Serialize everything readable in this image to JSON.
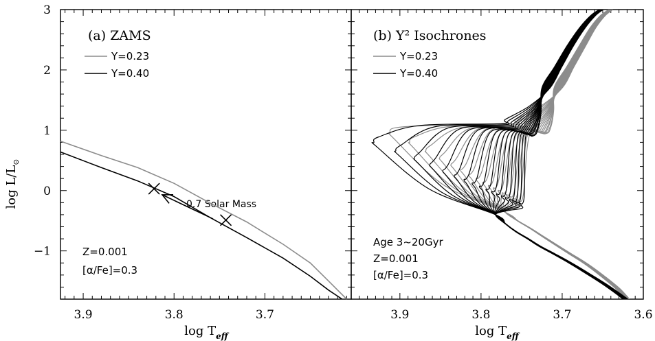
{
  "colors": {
    "gray": "#8c8c8c",
    "black": "#000000",
    "background": "#ffffff"
  },
  "chart_data": [
    {
      "type": "line",
      "title": "(a) ZAMS",
      "xlabel": "log T",
      "xlabel_sub": "eff",
      "ylabel": "log L/L",
      "xlim": [
        3.925,
        3.605
      ],
      "ylim": [
        -1.8,
        3.0
      ],
      "x_ticks": [
        3.9,
        3.8,
        3.7
      ],
      "x_tick_labels": [
        "3.9",
        "3.8",
        "3.7"
      ],
      "y_ticks": [
        -1,
        0,
        1,
        2,
        3
      ],
      "y_tick_labels": [
        "−1",
        "0",
        "1",
        "2",
        "3"
      ],
      "legend": [
        "Y=0.23",
        "Y=0.40"
      ],
      "notes": [
        "Z=0.001",
        "[α/Fe]=0.3"
      ],
      "arrow_label": "0.7 Solar Mass",
      "markers": [
        {
          "x": 3.822,
          "y": 0.03
        },
        {
          "x": 3.743,
          "y": -0.49
        }
      ],
      "arrow": {
        "from": {
          "x": 3.757,
          "y": -0.47
        },
        "to": {
          "x": 3.813,
          "y": -0.07
        }
      },
      "series": [
        {
          "name": "Y=0.23",
          "color": "gray",
          "x": [
            3.925,
            3.88,
            3.84,
            3.8,
            3.76,
            3.72,
            3.68,
            3.65,
            3.63,
            3.61
          ],
          "y": [
            0.82,
            0.58,
            0.38,
            0.12,
            -0.21,
            -0.52,
            -0.89,
            -1.2,
            -1.5,
            -1.8
          ]
        },
        {
          "name": "Y=0.40",
          "color": "black",
          "x": [
            3.925,
            3.88,
            3.84,
            3.8,
            3.76,
            3.72,
            3.68,
            3.65,
            3.63,
            3.615
          ],
          "y": [
            0.64,
            0.38,
            0.16,
            -0.1,
            -0.45,
            -0.78,
            -1.12,
            -1.42,
            -1.65,
            -1.8
          ]
        }
      ]
    },
    {
      "type": "line",
      "title": "(b) Y² Isochrones",
      "xlabel": "log T",
      "xlabel_sub": "eff",
      "xlim": [
        3.96,
        3.6
      ],
      "ylim": [
        -1.8,
        3.0
      ],
      "x_ticks": [
        3.9,
        3.8,
        3.7,
        3.6
      ],
      "x_tick_labels": [
        "3.9",
        "3.8",
        "3.7",
        "3.6"
      ],
      "legend": [
        "Y=0.23",
        "Y=0.40"
      ],
      "notes": [
        "Age 3~20Gyr",
        "Z=0.001",
        "[α/Fe]=0.3"
      ],
      "ages_gyr": [
        3,
        4,
        5,
        6,
        7,
        8,
        9,
        10,
        11,
        12,
        13,
        14,
        15,
        16,
        17,
        18,
        19,
        20
      ],
      "series": [
        {
          "name": "Y=0.23",
          "color": "gray",
          "turnoff_logTeff": [
            3.912,
            3.888,
            3.868,
            3.851,
            3.837,
            3.825,
            3.815,
            3.806,
            3.798,
            3.791,
            3.785,
            3.779,
            3.774,
            3.769,
            3.765,
            3.761,
            3.757,
            3.754
          ],
          "turnoff_logL": [
            0.95,
            0.8,
            0.66,
            0.54,
            0.43,
            0.34,
            0.26,
            0.19,
            0.13,
            0.08,
            0.04,
            0.0,
            -0.04,
            -0.07,
            -0.1,
            -0.13,
            -0.15,
            -0.17
          ],
          "subgiant_logL": [
            1.1,
            1.08,
            1.06,
            1.05,
            1.04,
            1.03,
            1.02,
            1.01,
            1.0,
            0.99,
            0.98,
            0.97,
            0.96,
            0.96,
            0.95,
            0.94,
            0.94,
            0.93
          ],
          "subgiant_logTeff": [
            3.757,
            3.753,
            3.749,
            3.745,
            3.742,
            3.739,
            3.736,
            3.733,
            3.731,
            3.729,
            3.727,
            3.725,
            3.723,
            3.721,
            3.719,
            3.718,
            3.716,
            3.715
          ],
          "main_sequence": {
            "x": [
              3.77,
              3.755,
              3.74,
              3.725,
              3.71,
              3.69,
              3.67,
              3.65,
              3.632,
              3.62
            ],
            "y": [
              -0.36,
              -0.5,
              -0.62,
              -0.75,
              -0.88,
              -1.05,
              -1.22,
              -1.42,
              -1.62,
              -1.8
            ]
          },
          "giant_branch": {
            "x": [
              3.705,
              3.69,
              3.675,
              3.662,
              3.65,
              3.64
            ],
            "y": [
              1.7,
              2.05,
              2.4,
              2.7,
              2.9,
              3.0
            ]
          }
        },
        {
          "name": "Y=0.40",
          "color": "black",
          "turnoff_logTeff": [
            3.932,
            3.905,
            3.882,
            3.863,
            3.847,
            3.833,
            3.821,
            3.811,
            3.802,
            3.794,
            3.787,
            3.781,
            3.775,
            3.77,
            3.765,
            3.761,
            3.757,
            3.753
          ],
          "turnoff_logL": [
            0.8,
            0.66,
            0.54,
            0.43,
            0.33,
            0.25,
            0.18,
            0.12,
            0.07,
            0.02,
            -0.02,
            -0.06,
            -0.09,
            -0.12,
            -0.15,
            -0.17,
            -0.19,
            -0.21
          ],
          "subgiant_logL": [
            1.1,
            1.08,
            1.06,
            1.04,
            1.02,
            1.01,
            1.0,
            0.98,
            0.97,
            0.96,
            0.95,
            0.94,
            0.93,
            0.92,
            0.92,
            0.91,
            0.9,
            0.89
          ],
          "subgiant_logTeff": [
            3.77,
            3.766,
            3.762,
            3.759,
            3.756,
            3.753,
            3.75,
            3.748,
            3.746,
            3.744,
            3.742,
            3.74,
            3.738,
            3.737,
            3.735,
            3.734,
            3.732,
            3.731
          ],
          "main_sequence": {
            "x": [
              3.782,
              3.77,
              3.757,
              3.742,
              3.728,
              3.71,
              3.69,
              3.668,
              3.648,
              3.632,
              3.622
            ],
            "y": [
              -0.4,
              -0.55,
              -0.68,
              -0.8,
              -0.92,
              -1.05,
              -1.2,
              -1.38,
              -1.55,
              -1.7,
              -1.8
            ]
          },
          "giant_branch": {
            "x": [
              3.72,
              3.705,
              3.69,
              3.675,
              3.662,
              3.652
            ],
            "y": [
              1.7,
              2.05,
              2.4,
              2.7,
              2.9,
              3.0
            ]
          }
        }
      ]
    }
  ]
}
